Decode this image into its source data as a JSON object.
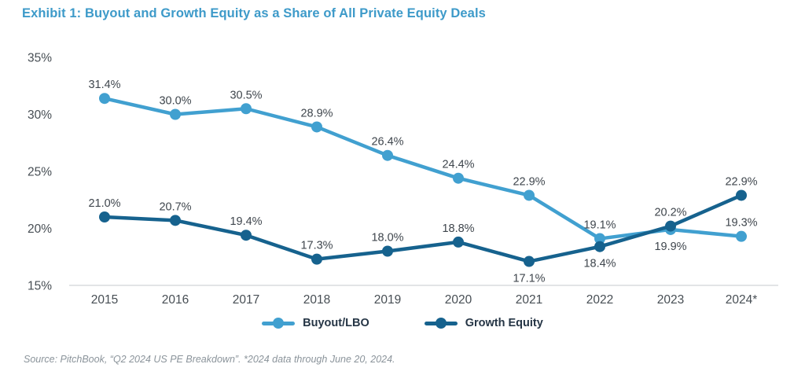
{
  "title": "Exhibit 1: Buyout and Growth Equity as a Share of All Private Equity Deals",
  "source": "Source: PitchBook, “Q2 2024 US PE Breakdown”. *2024 data through June 20, 2024.",
  "colors": {
    "title_blue": "#3d9ac9",
    "buyout_blue": "#41a0d0",
    "growth_blue": "#16628e",
    "axis_line": "#d8dbdd",
    "tick_text": "#474e54",
    "data_label_text": "#3f464d",
    "legend_text": "#253545",
    "source_text": "#8b949b"
  },
  "legend": {
    "items": [
      {
        "label": "Buyout/LBO",
        "color": "#41a0d0"
      },
      {
        "label": "Growth Equity",
        "color": "#16628e"
      }
    ]
  },
  "chart_data": {
    "type": "line",
    "categories": [
      "2015",
      "2016",
      "2017",
      "2018",
      "2019",
      "2020",
      "2021",
      "2022",
      "2023",
      "2024*"
    ],
    "series": [
      {
        "name": "Buyout/LBO",
        "color": "#41a0d0",
        "values": [
          31.4,
          30.0,
          30.5,
          28.9,
          26.4,
          24.4,
          22.9,
          19.1,
          19.9,
          19.3
        ],
        "label_below": [
          false,
          false,
          false,
          false,
          false,
          false,
          false,
          false,
          true,
          false
        ]
      },
      {
        "name": "Growth Equity",
        "color": "#16628e",
        "values": [
          21.0,
          20.7,
          19.4,
          17.3,
          18.0,
          18.8,
          17.1,
          18.4,
          20.2,
          22.9
        ],
        "label_below": [
          false,
          false,
          false,
          false,
          false,
          false,
          true,
          true,
          false,
          false
        ]
      }
    ],
    "title": "Exhibit 1: Buyout and Growth Equity as a Share of All Private Equity Deals",
    "xlabel": "",
    "ylabel": "",
    "ylim": [
      15,
      35
    ],
    "yticks": [
      15,
      20,
      25,
      30,
      35
    ],
    "ytick_format": "{v}%",
    "data_label_format": "{v}%",
    "grid": false,
    "legend_position": "bottom"
  }
}
